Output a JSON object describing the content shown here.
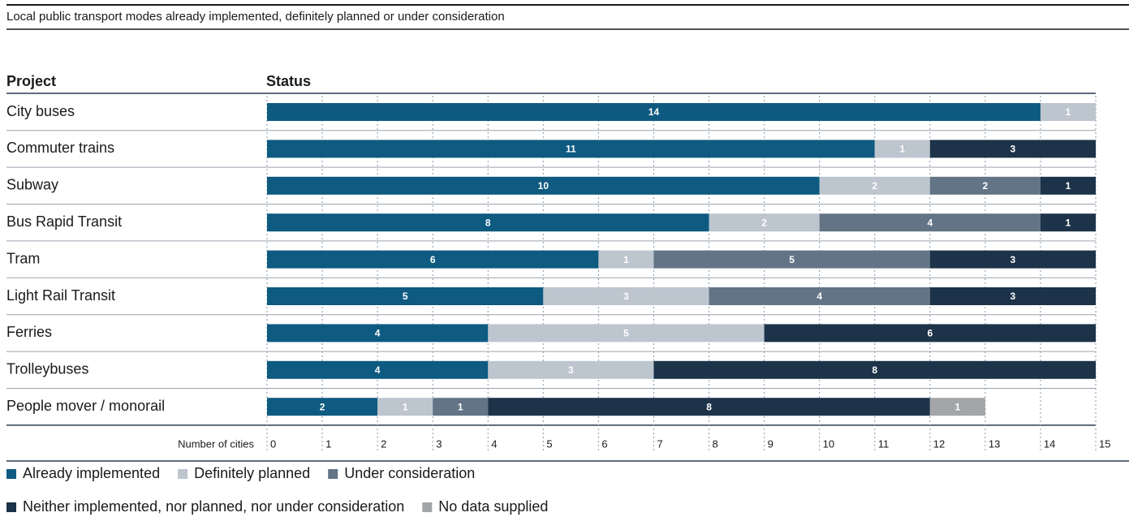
{
  "chart_data": {
    "type": "stacked_barh",
    "title": "Local public transport modes already implemented, definitely planned or under consideration",
    "row_header": "Project",
    "value_header": "Status",
    "xlabel": "Number of cities",
    "categories": [
      "City buses",
      "Commuter trains",
      "Subway",
      "Bus Rapid Transit",
      "Tram",
      "Light Rail Transit",
      "Ferries",
      "Trolleybuses",
      "People mover / monorail"
    ],
    "series": [
      {
        "name": "Already implemented",
        "color": "#0e5a80",
        "values": [
          14,
          11,
          10,
          8,
          6,
          5,
          4,
          4,
          2
        ]
      },
      {
        "name": "Definitely planned",
        "color": "#bdc5cf",
        "values": [
          1,
          1,
          2,
          2,
          1,
          3,
          5,
          3,
          1
        ]
      },
      {
        "name": "Under consideration",
        "color": "#627486",
        "values": [
          null,
          null,
          2,
          4,
          5,
          4,
          null,
          null,
          1
        ]
      },
      {
        "name": "Neither implemented, nor planned, nor under consideration",
        "color": "#1c3349",
        "values": [
          null,
          3,
          1,
          1,
          3,
          3,
          6,
          8,
          8
        ]
      },
      {
        "name": "No data supplied",
        "color": "#a3a5a8",
        "values": [
          null,
          null,
          null,
          null,
          null,
          null,
          null,
          null,
          1
        ]
      }
    ],
    "xlim": [
      0,
      15
    ],
    "xticks": [
      0,
      1,
      2,
      3,
      4,
      5,
      6,
      7,
      8,
      9,
      10,
      11,
      12,
      13,
      14,
      15
    ],
    "grid": true
  }
}
